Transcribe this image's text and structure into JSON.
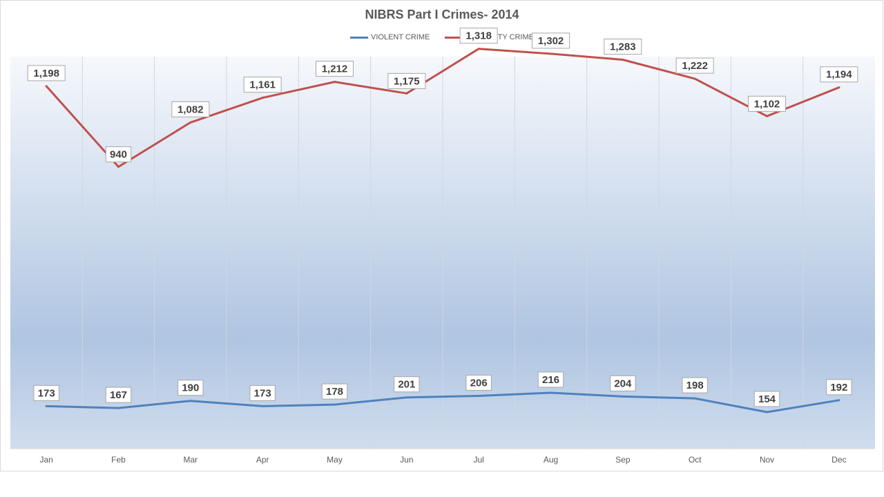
{
  "chart_data": {
    "type": "line",
    "title": "NIBRS Part I Crimes- 2014",
    "xlabel": "",
    "ylabel": "",
    "categories": [
      "Jan",
      "Feb",
      "Mar",
      "Apr",
      "May",
      "Jun",
      "Jul",
      "Aug",
      "Sep",
      "Oct",
      "Nov",
      "Dec"
    ],
    "series": [
      {
        "name": "VIOLENT CRIME",
        "color": "#4f81bd",
        "values": [
          173,
          167,
          190,
          173,
          178,
          201,
          206,
          216,
          204,
          198,
          154,
          192
        ],
        "labels": [
          "173",
          "167",
          "190",
          "173",
          "178",
          "201",
          "206",
          "216",
          "204",
          "198",
          "154",
          "192"
        ]
      },
      {
        "name": "PROPERTY CRIME",
        "color": "#c0504d",
        "values": [
          1198,
          940,
          1082,
          1161,
          1212,
          1175,
          1318,
          1302,
          1283,
          1222,
          1102,
          1194
        ],
        "labels": [
          "1,198",
          "940",
          "1,082",
          "1,161",
          "1,212",
          "1,175",
          "1,318",
          "1,302",
          "1,283",
          "1,222",
          "1,102",
          "1,194"
        ]
      }
    ],
    "ylim": [
      100,
      1400
    ],
    "grid": "vertical",
    "legend": "top-center",
    "y_axis_visible": false
  }
}
